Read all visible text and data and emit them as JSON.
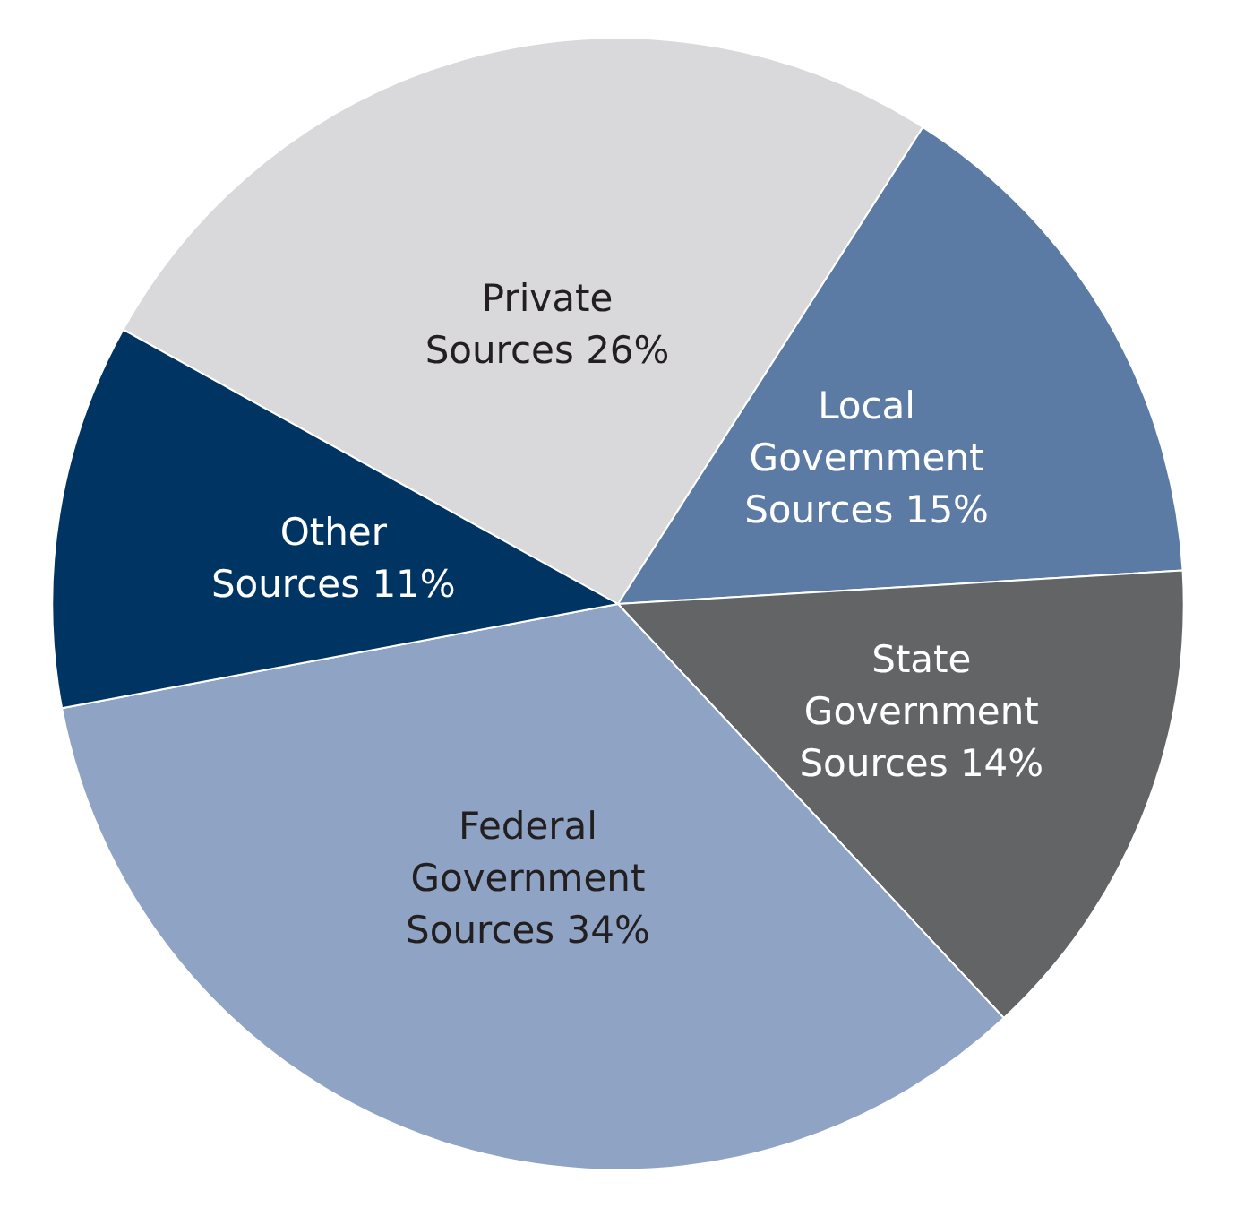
{
  "chart_data": {
    "type": "pie",
    "categories": [
      "Private Sources 26%",
      "Local Government Sources 15%",
      "State Government Sources 14%",
      "Federal Government Sources 34%",
      "Other Sources 11%"
    ],
    "values": [
      26,
      15,
      14,
      34,
      11
    ],
    "colors": [
      "#d9d9db",
      "#5b7ba5",
      "#636466",
      "#8fa4c4",
      "#003462"
    ],
    "legend": false
  }
}
